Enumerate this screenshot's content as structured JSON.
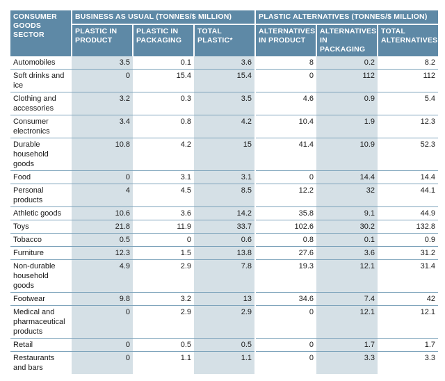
{
  "headers": {
    "sector": "CONSUMER GOODS SECTOR",
    "group_bau": "BUSINESS AS USUAL (TONNES/$ MILLION)",
    "group_alt": "PLASTIC ALTERNATIVES (TONNES/$ MILLION)",
    "columns": [
      "PLASTIC IN PRODUCT",
      "PLASTIC IN PACKAGING",
      "TOTAL PLASTIC*",
      "ALTERNATIVES IN PRODUCT",
      "ALTERNATIVES IN PACKAGING",
      "TOTAL ALTERNATIVES"
    ]
  },
  "rows": [
    {
      "sector": "Automobiles",
      "values": [
        "3.5",
        "0.1",
        "3.6",
        "8",
        "0.2",
        "8.2"
      ]
    },
    {
      "sector": "Soft drinks and ice",
      "values": [
        "0",
        "15.4",
        "15.4",
        "0",
        "112",
        "112"
      ]
    },
    {
      "sector": "Clothing and accessories",
      "values": [
        "3.2",
        "0.3",
        "3.5",
        "4.6",
        "0.9",
        "5.4"
      ]
    },
    {
      "sector": "Consumer electronics",
      "values": [
        "3.4",
        "0.8",
        "4.2",
        "10.4",
        "1.9",
        "12.3"
      ]
    },
    {
      "sector": "Durable household goods",
      "values": [
        "10.8",
        "4.2",
        "15",
        "41.4",
        "10.9",
        "52.3"
      ]
    },
    {
      "sector": "Food",
      "values": [
        "0",
        "3.1",
        "3.1",
        "0",
        "14.4",
        "14.4"
      ]
    },
    {
      "sector": "Personal products",
      "values": [
        "4",
        "4.5",
        "8.5",
        "12.2",
        "32",
        "44.1"
      ]
    },
    {
      "sector": "Athletic goods",
      "values": [
        "10.6",
        "3.6",
        "14.2",
        "35.8",
        "9.1",
        "44.9"
      ]
    },
    {
      "sector": "Toys",
      "values": [
        "21.8",
        "11.9",
        "33.7",
        "102.6",
        "30.2",
        "132.8"
      ]
    },
    {
      "sector": "Tobacco",
      "values": [
        "0.5",
        "0",
        "0.6",
        "0.8",
        "0.1",
        "0.9"
      ]
    },
    {
      "sector": "Furniture",
      "values": [
        "12.3",
        "1.5",
        "13.8",
        "27.6",
        "3.6",
        "31.2"
      ]
    },
    {
      "sector": "Non-durable household goods",
      "values": [
        "4.9",
        "2.9",
        "7.8",
        "19.3",
        "12.1",
        "31.4"
      ]
    },
    {
      "sector": "Footwear",
      "values": [
        "9.8",
        "3.2",
        "13",
        "34.6",
        "7.4",
        "42"
      ]
    },
    {
      "sector": "Medical and pharmaceutical products",
      "values": [
        "0",
        "2.9",
        "2.9",
        "0",
        "12.1",
        "12.1"
      ]
    },
    {
      "sector": "Retail",
      "values": [
        "0",
        "0.5",
        "0.5",
        "0",
        "1.7",
        "1.7"
      ]
    },
    {
      "sector": "Restaurants and bars",
      "values": [
        "0",
        "1.1",
        "1.1",
        "0",
        "3.3",
        "3.3"
      ]
    }
  ],
  "colors": {
    "header_bg": "#5e89a6",
    "shaded_column": "#d5e0e6",
    "rule": "#7da3bb"
  }
}
